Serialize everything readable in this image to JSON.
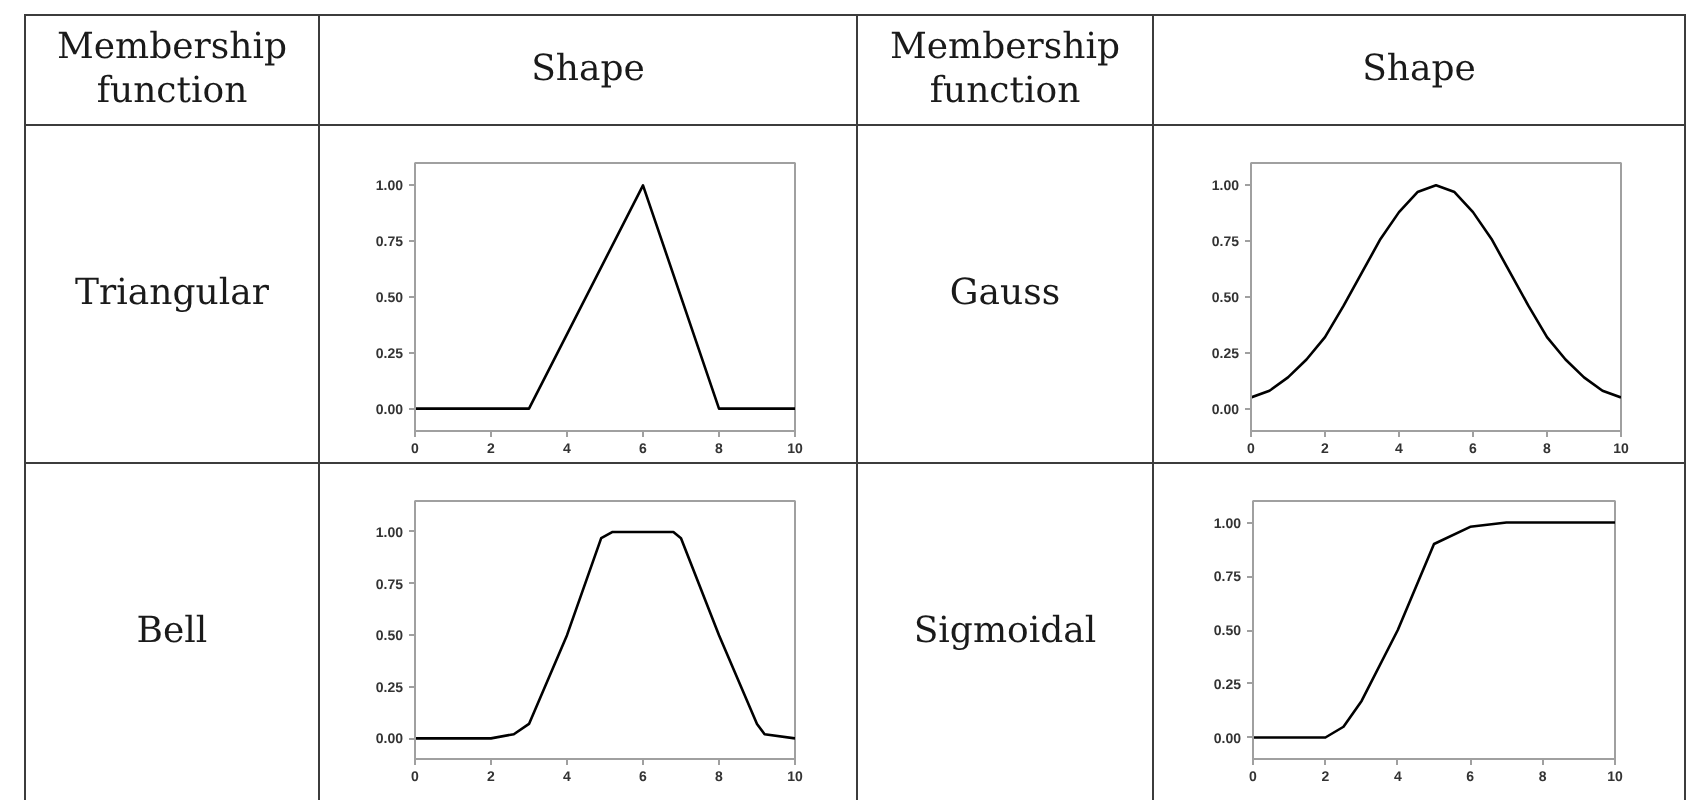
{
  "chart_data": [
    {
      "type": "line",
      "title": "Triangular",
      "annotations": [
        "Membership function",
        "Shape"
      ],
      "x": [
        0,
        3,
        6,
        8,
        10
      ],
      "values": [
        0,
        0,
        1,
        0,
        0
      ],
      "color": "#000000",
      "xlim": [
        0,
        10
      ],
      "ylim": [
        -0.1,
        1.1
      ],
      "xticks": [
        0,
        2,
        4,
        6,
        8,
        10
      ],
      "yticks": [
        {
          "value": 0,
          "label": "0.00"
        },
        {
          "value": 0.25,
          "label": "0.25"
        },
        {
          "value": 0.5,
          "label": "0.50"
        },
        {
          "value": 0.75,
          "label": "0.75"
        },
        {
          "value": 1,
          "label": "1.00"
        }
      ]
    },
    {
      "type": "line",
      "title": "Gauss",
      "annotations": [
        "Membership function",
        "Shape"
      ],
      "x": [
        0,
        0.5,
        1,
        1.5,
        2,
        2.5,
        3,
        3.5,
        4,
        4.5,
        5,
        5.5,
        6,
        6.5,
        7,
        7.5,
        8,
        8.5,
        9,
        9.5,
        10
      ],
      "values": [
        0.05,
        0.08,
        0.14,
        0.22,
        0.32,
        0.46,
        0.61,
        0.76,
        0.88,
        0.97,
        1.0,
        0.97,
        0.88,
        0.76,
        0.61,
        0.46,
        0.32,
        0.22,
        0.14,
        0.08,
        0.05
      ],
      "color": "#000000",
      "xlim": [
        0,
        10
      ],
      "ylim": [
        -0.1,
        1.1
      ],
      "xticks": [
        0,
        2,
        4,
        6,
        8,
        10
      ],
      "yticks": [
        {
          "value": 0,
          "label": "0.00"
        },
        {
          "value": 0.25,
          "label": "0.25"
        },
        {
          "value": 0.5,
          "label": "0.50"
        },
        {
          "value": 0.75,
          "label": "0.75"
        },
        {
          "value": 1,
          "label": "1.00"
        }
      ]
    },
    {
      "type": "line",
      "title": "Bell",
      "x": [
        0,
        2,
        2.6,
        3,
        4,
        4.9,
        5.2,
        6.8,
        7.0,
        8,
        9,
        9.2,
        10
      ],
      "values": [
        0,
        0,
        0.02,
        0.07,
        0.5,
        0.97,
        1,
        1,
        0.97,
        0.5,
        0.07,
        0.02,
        0
      ],
      "color": "#000000",
      "xlim": [
        0,
        10
      ],
      "ylim": [
        -0.1,
        1.15
      ],
      "xticks": [
        0,
        2,
        4,
        6,
        8,
        10
      ],
      "yticks": [
        {
          "value": 0,
          "label": "0.00"
        },
        {
          "value": 0.25,
          "label": "0.25"
        },
        {
          "value": 0.5,
          "label": "0.50"
        },
        {
          "value": 0.75,
          "label": "0.75"
        },
        {
          "value": 1,
          "label": "1.00"
        }
      ]
    },
    {
      "type": "line",
      "title": "Sigmoidal",
      "x": [
        0,
        2,
        2.5,
        3,
        4,
        5,
        6,
        7,
        10
      ],
      "values": [
        0,
        0,
        0.05,
        0.17,
        0.5,
        0.9,
        0.98,
        1,
        1
      ],
      "color": "#000000",
      "xlim": [
        0,
        10
      ],
      "ylim": [
        -0.1,
        1.1
      ],
      "xticks": [
        0,
        2,
        4,
        6,
        8,
        10
      ],
      "yticks": [
        {
          "value": 0,
          "label": "0.00"
        },
        {
          "value": 0.25,
          "label": "0.25"
        },
        {
          "value": 0.5,
          "label": "0.50"
        },
        {
          "value": 0.75,
          "label": "0.75"
        },
        {
          "value": 1,
          "label": "1.00"
        }
      ]
    }
  ]
}
